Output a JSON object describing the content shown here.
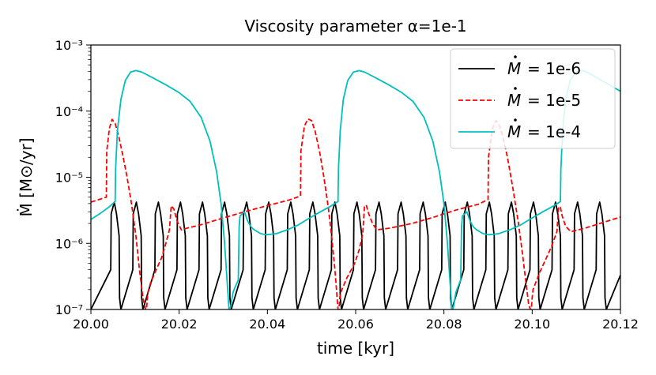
{
  "chart_data": {
    "type": "line",
    "title": "Viscosity parameter α=1e-1",
    "xlabel": "time [kyr]",
    "ylabel": "Ṁ [M⊙/yr]",
    "yscale": "log",
    "xlim": [
      20.0,
      20.12
    ],
    "ylim": [
      1e-07,
      0.001
    ],
    "x_ticks": [
      20.0,
      20.02,
      20.04,
      20.06,
      20.08,
      20.1,
      20.12
    ],
    "x_tick_labels": [
      "20.00",
      "20.02",
      "20.04",
      "20.06",
      "20.08",
      "20.10",
      "20.12"
    ],
    "y_ticks": [
      1e-07,
      1e-06,
      1e-05,
      0.0001,
      0.001
    ],
    "y_tick_labels": [
      "10⁻⁷",
      "10⁻⁶",
      "10⁻⁵",
      "10⁻⁴",
      "10⁻³"
    ],
    "legend_position": "top-right",
    "series": [
      {
        "name": "Ṁ = 1e-6",
        "label": "= 1e-6",
        "color": "#000000",
        "dash": "solid",
        "x": [
          20.0,
          20.0045,
          20.0046,
          20.0053,
          20.0058,
          20.0064,
          20.0065,
          20.0068,
          20.0095,
          20.0096,
          20.0103,
          20.0108,
          20.0114,
          20.0115,
          20.0118,
          20.0145,
          20.0146,
          20.0153,
          20.0158,
          20.0164,
          20.0165,
          20.0168,
          20.0195,
          20.0196,
          20.0203,
          20.0208,
          20.0214,
          20.0215,
          20.0218,
          20.0245,
          20.0246,
          20.0253,
          20.0258,
          20.0264,
          20.0265,
          20.0268,
          20.0295,
          20.0296,
          20.0303,
          20.0308,
          20.0314,
          20.0315,
          20.0318,
          20.0345,
          20.0346,
          20.0353,
          20.0358,
          20.0364,
          20.0365,
          20.0368,
          20.0395,
          20.0396,
          20.0403,
          20.0408,
          20.0414,
          20.0415,
          20.0418,
          20.0445,
          20.0446,
          20.0453,
          20.0458,
          20.0464,
          20.0465,
          20.0468,
          20.0495,
          20.0496,
          20.0503,
          20.0508,
          20.0514,
          20.0515,
          20.0518,
          20.0545,
          20.0546,
          20.0553,
          20.0558,
          20.0564,
          20.0565,
          20.0568,
          20.0595,
          20.0596,
          20.0603,
          20.0608,
          20.0614,
          20.0615,
          20.0618,
          20.0645,
          20.0646,
          20.0653,
          20.0658,
          20.0664,
          20.0665,
          20.0668,
          20.0695,
          20.0696,
          20.0703,
          20.0708,
          20.0714,
          20.0715,
          20.0718,
          20.0745,
          20.0746,
          20.0753,
          20.0758,
          20.0764,
          20.0765,
          20.0768,
          20.0795,
          20.0796,
          20.0803,
          20.0808,
          20.0814,
          20.0815,
          20.0818,
          20.0845,
          20.0846,
          20.0853,
          20.0858,
          20.0864,
          20.0865,
          20.0868,
          20.0895,
          20.0896,
          20.0903,
          20.0908,
          20.0914,
          20.0915,
          20.0918,
          20.0945,
          20.0946,
          20.0953,
          20.0958,
          20.0964,
          20.0965,
          20.0968,
          20.0995,
          20.0996,
          20.1003,
          20.1008,
          20.1014,
          20.1015,
          20.1018,
          20.1045,
          20.1046,
          20.1053,
          20.1058,
          20.1064,
          20.1065,
          20.1068,
          20.1095,
          20.1096,
          20.1103,
          20.1108,
          20.1114,
          20.1115,
          20.1118,
          20.1145,
          20.1146,
          20.1153,
          20.1158,
          20.1164,
          20.1165,
          20.1168,
          20.12
        ],
        "y": [
          1e-07,
          4e-07,
          2.8e-06,
          4.2e-06,
          2.8e-06,
          1.3e-06,
          1.5e-07,
          1e-07,
          4e-07,
          2.8e-06,
          4.2e-06,
          2.8e-06,
          1.3e-06,
          1.5e-07,
          1e-07,
          4e-07,
          2.8e-06,
          4.2e-06,
          2.8e-06,
          1.3e-06,
          1.5e-07,
          1e-07,
          4e-07,
          2.8e-06,
          4.2e-06,
          2.8e-06,
          1.3e-06,
          1.5e-07,
          1e-07,
          4e-07,
          2.8e-06,
          4.2e-06,
          2.8e-06,
          1.3e-06,
          1.5e-07,
          1e-07,
          4e-07,
          2.8e-06,
          4.2e-06,
          2.8e-06,
          1.3e-06,
          1.5e-07,
          1e-07,
          4e-07,
          2.8e-06,
          4.2e-06,
          2.8e-06,
          1.3e-06,
          1.5e-07,
          1e-07,
          4e-07,
          2.8e-06,
          4.2e-06,
          2.8e-06,
          1.3e-06,
          1.5e-07,
          1e-07,
          4e-07,
          2.8e-06,
          4.2e-06,
          2.8e-06,
          1.3e-06,
          1.5e-07,
          1e-07,
          4e-07,
          2.8e-06,
          4.2e-06,
          2.8e-06,
          1.3e-06,
          1.5e-07,
          1e-07,
          4e-07,
          2.8e-06,
          4.2e-06,
          2.8e-06,
          1.3e-06,
          1.5e-07,
          1e-07,
          4e-07,
          2.8e-06,
          4.2e-06,
          2.8e-06,
          1.3e-06,
          1.5e-07,
          1e-07,
          4e-07,
          2.8e-06,
          4.2e-06,
          2.8e-06,
          1.3e-06,
          1.5e-07,
          1e-07,
          4e-07,
          2.8e-06,
          4.2e-06,
          2.8e-06,
          1.3e-06,
          1.5e-07,
          1e-07,
          4e-07,
          2.8e-06,
          4.2e-06,
          2.8e-06,
          1.3e-06,
          1.5e-07,
          1e-07,
          4e-07,
          2.8e-06,
          4.2e-06,
          2.8e-06,
          1.3e-06,
          1.5e-07,
          1e-07,
          4e-07,
          2.8e-06,
          4.2e-06,
          2.8e-06,
          1.3e-06,
          1.5e-07,
          1e-07,
          4e-07,
          2.8e-06,
          4.2e-06,
          2.8e-06,
          1.3e-06,
          1.5e-07,
          1e-07,
          4e-07,
          2.8e-06,
          4.2e-06,
          2.8e-06,
          1.3e-06,
          1.5e-07,
          1e-07,
          4e-07,
          2.8e-06,
          4.2e-06,
          2.8e-06,
          1.3e-06,
          1.5e-07,
          1e-07,
          4e-07,
          2.8e-06,
          4.2e-06,
          2.8e-06,
          1.3e-06,
          1.5e-07,
          1e-07,
          4e-07,
          2.8e-06,
          4.2e-06,
          2.8e-06,
          1.3e-06,
          1.5e-07,
          1e-07,
          4e-07,
          2.8e-06,
          4.2e-06,
          2.8e-06,
          1.3e-06,
          1.5e-07,
          1e-07,
          3.3e-07
        ]
      },
      {
        "name": "Ṁ = 1e-5",
        "label": "= 1e-5",
        "color": "#ff0000",
        "dash": "dashed",
        "x": [
          20.0,
          20.0035,
          20.0036,
          20.0042,
          20.0048,
          20.0055,
          20.0063,
          20.0072,
          20.0082,
          20.0092,
          20.0102,
          20.011,
          20.0118,
          20.0124,
          20.0126,
          20.0128,
          20.0129,
          20.0135,
          20.0148,
          20.016,
          20.0168,
          20.0178,
          20.0182,
          20.0188,
          20.0195,
          20.0205,
          20.0218,
          20.0248,
          20.0298,
          20.0348,
          20.0398,
          20.0448,
          20.0475,
          20.0476,
          20.0484,
          20.0492,
          20.05,
          20.0508,
          20.0518,
          20.0528,
          20.0538,
          20.0546,
          20.0553,
          20.0558,
          20.056,
          20.0562,
          20.0564,
          20.0566,
          20.058,
          20.0598,
          20.0608,
          20.0616,
          20.062,
          20.0624,
          20.0628,
          20.0638,
          20.0648,
          20.0678,
          20.0728,
          20.0778,
          20.0828,
          20.0878,
          20.09,
          20.0901,
          20.091,
          20.0918,
          20.0926,
          20.0934,
          20.0944,
          20.0956,
          20.0968,
          20.0978,
          20.0986,
          20.0992,
          20.0996,
          20.0998,
          20.1,
          20.1002,
          20.1016,
          20.1032,
          20.1044,
          20.1056,
          20.106,
          20.1064,
          20.1068,
          20.1076,
          20.1088,
          20.112,
          20.12
        ],
        "y": [
          4.2e-06,
          5e-06,
          2.5e-05,
          5.5e-05,
          7.5e-05,
          6.5e-05,
          4.2e-05,
          2.2e-05,
          1e-05,
          4e-06,
          1.3e-06,
          4e-07,
          1.5e-07,
          1e-07,
          1e-07,
          1.5e-07,
          1.8e-07,
          2.5e-07,
          4e-07,
          6e-07,
          9e-07,
          1.6e-06,
          3.7e-06,
          3.3e-06,
          2.2e-06,
          1.6e-06,
          1.7e-06,
          1.9e-06,
          2.4e-06,
          3e-06,
          3.7e-06,
          4.5e-06,
          5.2e-06,
          2.5e-05,
          6e-05,
          7.6e-05,
          7.2e-05,
          5e-05,
          2.5e-05,
          1e-05,
          3.5e-06,
          1.2e-06,
          4e-07,
          1.5e-07,
          1e-07,
          1e-07,
          1.5e-07,
          1.8e-07,
          3e-07,
          5e-07,
          8e-07,
          1.4e-06,
          3.6e-06,
          3.8e-06,
          3e-06,
          2e-06,
          1.6e-06,
          1.7e-06,
          2e-06,
          2.5e-06,
          3.2e-06,
          3.9e-06,
          4.6e-06,
          2e-05,
          5.5e-05,
          7.2e-05,
          6e-05,
          4e-05,
          2e-05,
          7e-06,
          2.2e-06,
          7e-07,
          2.5e-07,
          1.2e-07,
          1e-07,
          1e-07,
          1.5e-07,
          2e-07,
          3.5e-07,
          6e-07,
          9e-07,
          1.5e-06,
          3.6e-06,
          3.5e-06,
          2.6e-06,
          1.8e-06,
          1.5e-06,
          1.7e-06,
          2.5e-06
        ]
      },
      {
        "name": "Ṁ = 1e-4",
        "label": "= 1e-4",
        "color": "#00bfbf",
        "dash": "solid",
        "x": [
          20.0,
          20.002,
          20.004,
          20.0055,
          20.0056,
          20.006,
          20.0068,
          20.0078,
          20.009,
          20.0102,
          20.0115,
          20.014,
          20.017,
          20.02,
          20.0225,
          20.025,
          20.027,
          20.0285,
          20.0295,
          20.0303,
          20.0309,
          20.0313,
          20.0315,
          20.0318,
          20.032,
          20.0322,
          20.0327,
          20.0332,
          20.0334,
          20.0336,
          20.0338,
          20.0348,
          20.0355,
          20.0362,
          20.037,
          20.0385,
          20.0398,
          20.042,
          20.0445,
          20.047,
          20.0495,
          20.052,
          20.0545,
          20.056,
          20.0561,
          20.0565,
          20.0572,
          20.0582,
          20.0595,
          20.0608,
          20.062,
          20.0645,
          20.0675,
          20.0705,
          20.073,
          20.0755,
          20.0775,
          20.079,
          20.08,
          20.0808,
          20.0814,
          20.0818,
          20.082,
          20.0823,
          20.0825,
          20.0827,
          20.0832,
          20.0836,
          20.0838,
          20.084,
          20.0842,
          20.0852,
          20.0859,
          20.0866,
          20.0874,
          20.0889,
          20.0902,
          20.0924,
          20.0949,
          20.0974,
          20.0999,
          20.1024,
          20.1049,
          20.1064,
          20.1065,
          20.1069,
          20.1076,
          20.1086,
          20.1099,
          20.1112,
          20.1124,
          20.12
        ],
        "y": [
          2.3e-06,
          2.8e-06,
          3.5e-06,
          4.3e-06,
          1.3e-05,
          5e-05,
          0.00015,
          0.00029,
          0.00039,
          0.00041,
          0.00039,
          0.00032,
          0.00025,
          0.00019,
          0.00014,
          8e-05,
          3.5e-05,
          1.2e-05,
          4e-06,
          1e-06,
          2.5e-07,
          1e-07,
          1e-07,
          1.2e-07,
          1.5e-07,
          1.8e-07,
          2.2e-07,
          2.6e-07,
          2.8e-07,
          1.8e-06,
          2.6e-06,
          3e-06,
          2.2e-06,
          1.8e-06,
          1.6e-06,
          1.4e-06,
          1.35e-06,
          1.4e-06,
          1.6e-06,
          1.9e-06,
          2.4e-06,
          3e-06,
          3.7e-06,
          4.3e-06,
          1.3e-05,
          5e-05,
          0.00015,
          0.00029,
          0.00039,
          0.00041,
          0.00039,
          0.00032,
          0.00025,
          0.00019,
          0.00014,
          8e-05,
          3.5e-05,
          1.2e-05,
          4e-06,
          1e-06,
          2.5e-07,
          1e-07,
          1e-07,
          1.2e-07,
          1.5e-07,
          1.8e-07,
          2.2e-07,
          2.6e-07,
          2.8e-07,
          1.8e-06,
          2.6e-06,
          3e-06,
          2.2e-06,
          1.8e-06,
          1.6e-06,
          1.4e-06,
          1.35e-06,
          1.4e-06,
          1.6e-06,
          1.9e-06,
          2.4e-06,
          3e-06,
          3.7e-06,
          4.3e-06,
          1.3e-05,
          5e-05,
          0.00015,
          0.00029,
          0.00039,
          0.00041,
          0.00039,
          0.0002
        ]
      }
    ]
  }
}
